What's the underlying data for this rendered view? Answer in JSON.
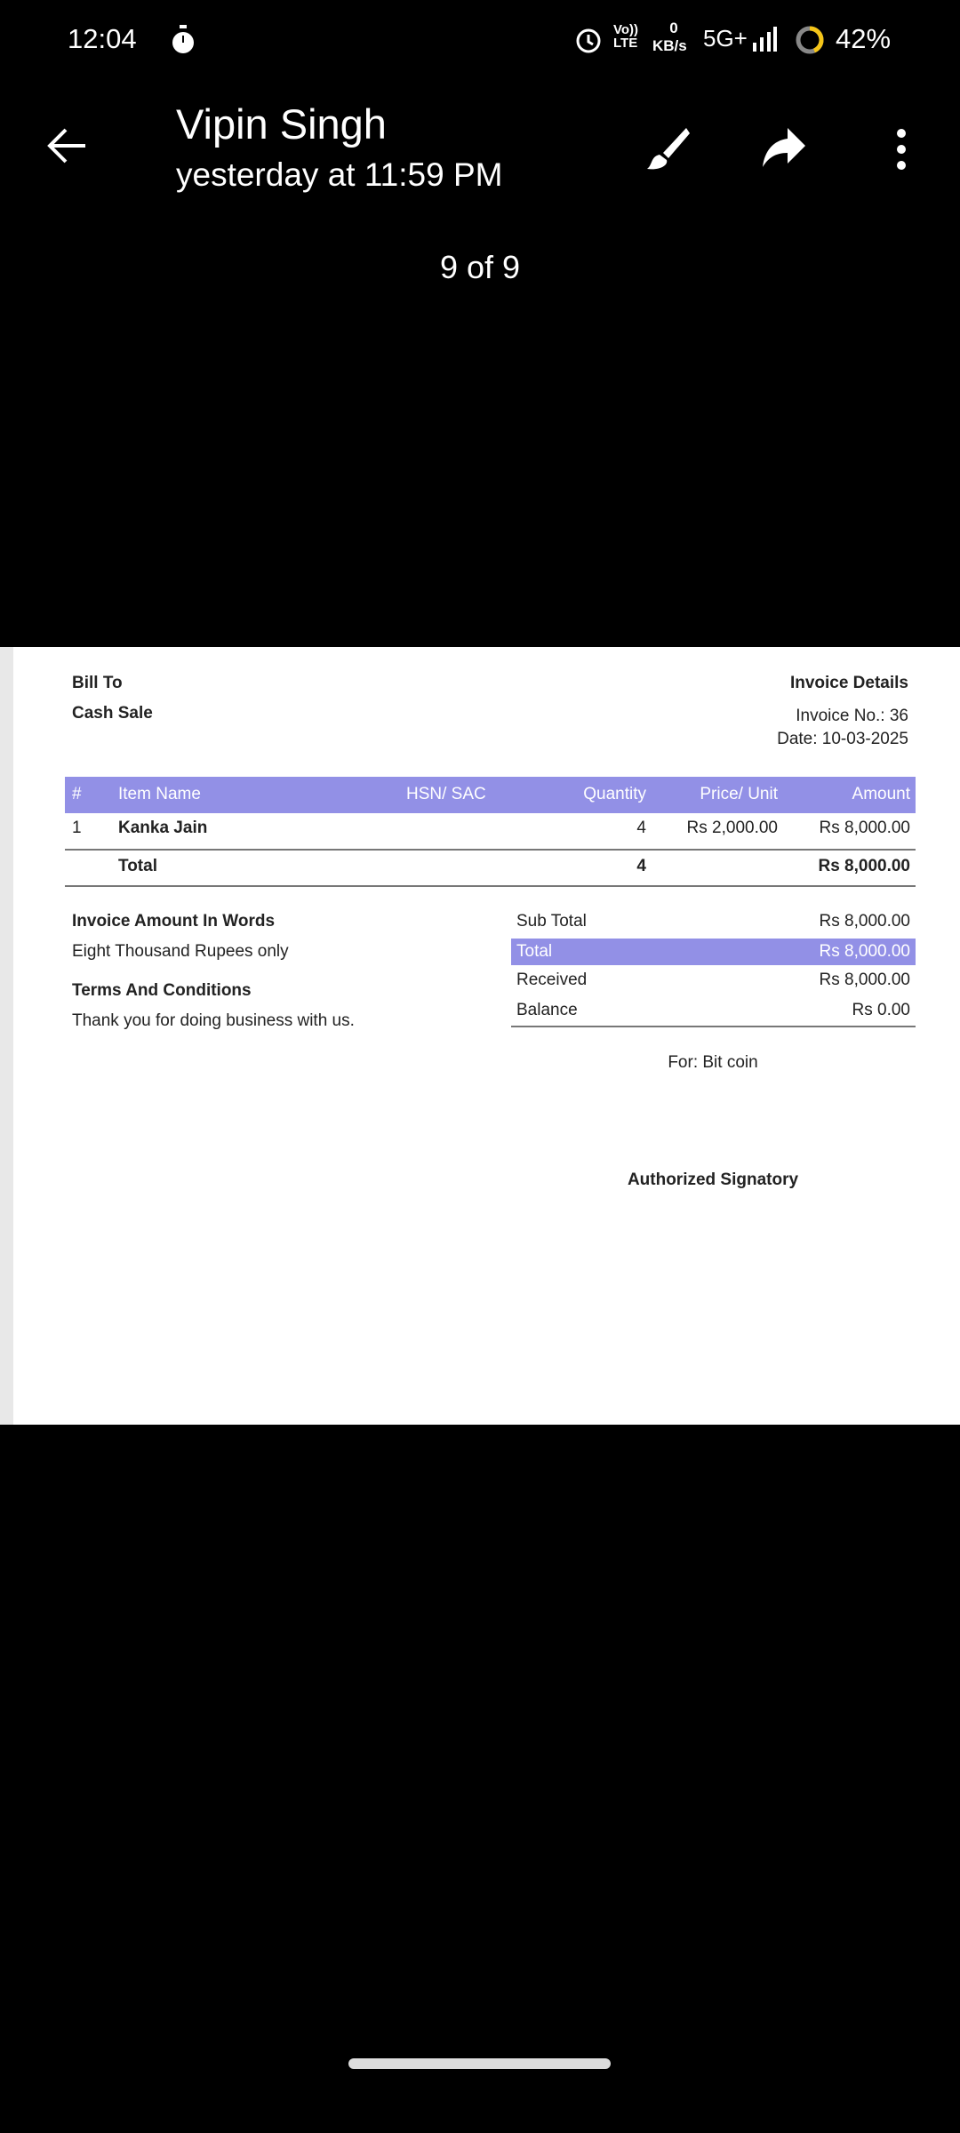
{
  "status_bar": {
    "time": "12:04",
    "network_speed_value": "0",
    "network_speed_unit": "KB/s",
    "volte": "Vo)) LTE",
    "network_type": "5G+",
    "battery": "42%",
    "icons": [
      "stopwatch-icon",
      "alarm-icon",
      "signal-icon",
      "battery-ring-icon"
    ],
    "battery_color": "#f5c518"
  },
  "header": {
    "sender": "Vipin Singh",
    "timestamp": "yesterday at 11:59 PM",
    "counter": "9 of 9",
    "icons": [
      "back-arrow-icon",
      "brush-icon",
      "share-icon",
      "more-vert-icon"
    ]
  },
  "invoice": {
    "bill_to_label": "Bill To",
    "bill_to_value": "Cash Sale",
    "details_label": "Invoice Details",
    "invoice_no": "Invoice No.: 36",
    "date": "Date: 10-03-2025",
    "accent": "#9290e6",
    "columns": [
      "#",
      "Item Name",
      "HSN/ SAC",
      "Quantity",
      "Price/ Unit",
      "Amount"
    ],
    "rows": [
      {
        "num": "1",
        "name": "Kanka Jain",
        "hsn": "",
        "qty": "4",
        "price": "Rs 2,000.00",
        "amount": "Rs 8,000.00"
      }
    ],
    "total_row": {
      "label": "Total",
      "qty": "4",
      "amount": "Rs 8,000.00"
    },
    "words_label": "Invoice Amount In Words",
    "words_value": "Eight Thousand Rupees only",
    "terms_label": "Terms And Conditions",
    "terms_value": "Thank you for doing business with us.",
    "summary": {
      "sub_total_label": "Sub Total",
      "sub_total": "Rs 8,000.00",
      "total_label": "Total",
      "total": "Rs 8,000.00",
      "received_label": "Received",
      "received": "Rs 8,000.00",
      "balance_label": "Balance",
      "balance": "Rs 0.00"
    },
    "for_label": "For: Bit coin",
    "signatory": "Authorized Signatory"
  }
}
